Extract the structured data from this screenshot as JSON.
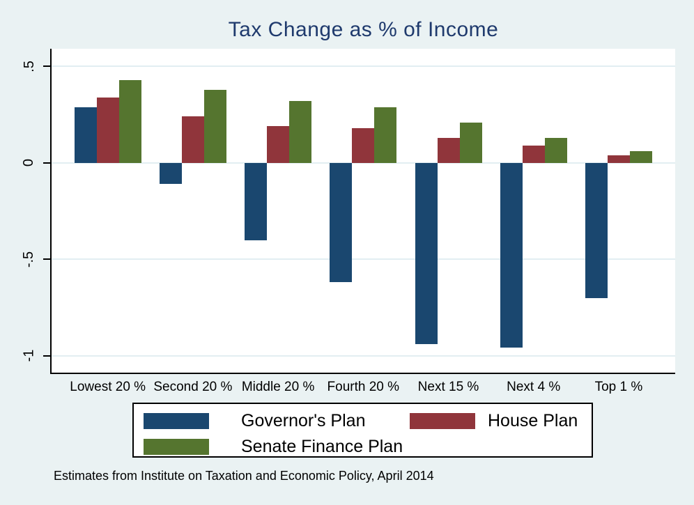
{
  "title": {
    "text": "Tax Change as % of Income",
    "color": "#1f3a6d"
  },
  "caption": {
    "text": "Estimates from Institute on Taxation and Economic Policy, April 2014"
  },
  "colors": {
    "background": "#eaf2f3",
    "plot_background": "#ffffff",
    "gridline": "#e2eef2",
    "axis": "#000000",
    "title_text": "#1f3a6d",
    "governors_plan": "#1a476f",
    "house_plan": "#90353b",
    "senate_finance_plan": "#55752f"
  },
  "chart_data": {
    "type": "bar",
    "title": "Tax Change as % of Income",
    "xlabel": "",
    "ylabel": "",
    "categories": [
      "Lowest 20 %",
      "Second 20 %",
      "Middle 20 %",
      "Fourth 20 %",
      "Next 15 %",
      "Next 4 %",
      "Top 1 %"
    ],
    "series": [
      {
        "name": "Governor's Plan",
        "color": "#1a476f",
        "values": [
          0.29,
          -0.11,
          -0.4,
          -0.62,
          -0.94,
          -0.96,
          -0.7
        ]
      },
      {
        "name": "House Plan",
        "color": "#90353b",
        "values": [
          0.34,
          0.24,
          0.19,
          0.18,
          0.13,
          0.09,
          0.04
        ]
      },
      {
        "name": "Senate Finance Plan",
        "color": "#55752f",
        "values": [
          0.43,
          0.38,
          0.32,
          0.29,
          0.21,
          0.13,
          0.06
        ]
      }
    ],
    "y_ticks": [
      {
        "label": ".5",
        "value": 0.5
      },
      {
        "label": "0",
        "value": 0
      },
      {
        "label": "-.5",
        "value": -0.5
      },
      {
        "label": "-1",
        "value": -1
      }
    ],
    "ylim": [
      -1.092,
      0.592
    ],
    "grid": true,
    "legend_position": "bottom",
    "note": "Estimates from Institute on Taxation and Economic Policy, April 2014"
  }
}
